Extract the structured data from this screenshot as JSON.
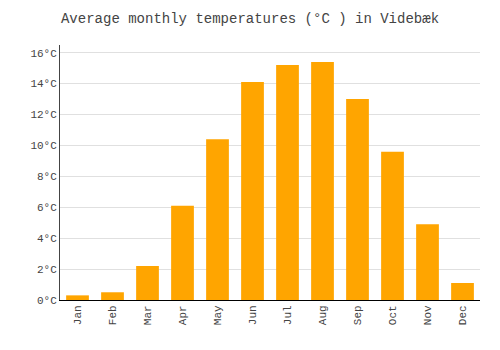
{
  "chart_data": {
    "type": "bar",
    "title": "Average monthly temperatures (°C ) in Videbæk",
    "categories": [
      "Jan",
      "Feb",
      "Mar",
      "Apr",
      "May",
      "Jun",
      "Jul",
      "Aug",
      "Sep",
      "Oct",
      "Nov",
      "Dec"
    ],
    "values": [
      0.3,
      0.5,
      2.2,
      6.1,
      10.4,
      14.1,
      15.2,
      15.4,
      13.0,
      9.6,
      4.9,
      1.1
    ],
    "color": "#FFA500",
    "ylim": [
      0,
      16.5
    ],
    "yticks": [
      {
        "value": 0,
        "label": "0°C"
      },
      {
        "value": 2,
        "label": "2°C"
      },
      {
        "value": 4,
        "label": "4°C"
      },
      {
        "value": 6,
        "label": "6°C"
      },
      {
        "value": 8,
        "label": "8°C"
      },
      {
        "value": 10,
        "label": "10°C"
      },
      {
        "value": 12,
        "label": "12°C"
      },
      {
        "value": 14,
        "label": "14°C"
      },
      {
        "value": 16,
        "label": "16°C"
      }
    ],
    "grid": true
  }
}
